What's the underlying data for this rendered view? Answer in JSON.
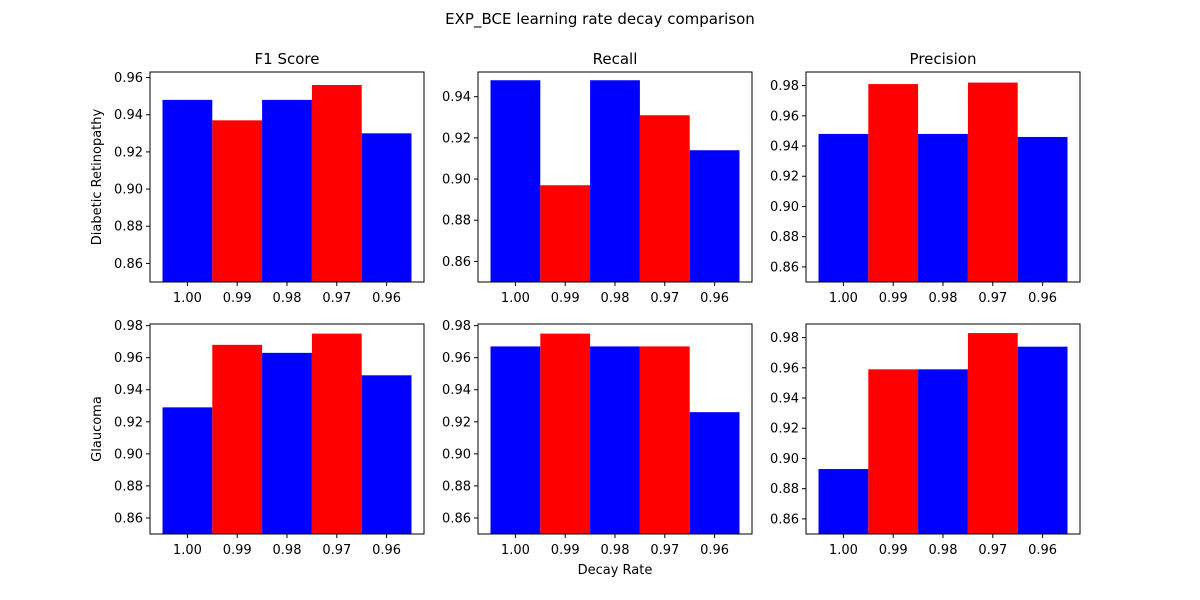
{
  "figure": {
    "title": "EXP_BCE learning rate decay comparison",
    "xlabel": "Decay Rate"
  },
  "columns": [
    "F1 Score",
    "Recall",
    "Precision"
  ],
  "rows": [
    "Diabetic Retinopathy",
    "Glaucoma"
  ],
  "colors": {
    "blue": "#0000ff",
    "red": "#ff0000",
    "axis": "#000000"
  },
  "chart_data": [
    {
      "type": "bar",
      "row": "Diabetic Retinopathy",
      "title": "F1 Score",
      "ylabel": "Diabetic Retinopathy",
      "categories": [
        "1.00",
        "0.99",
        "0.98",
        "0.97",
        "0.96"
      ],
      "values": [
        0.948,
        0.937,
        0.948,
        0.956,
        0.93
      ],
      "bar_colors": [
        "blue",
        "red",
        "blue",
        "red",
        "blue"
      ],
      "ylim": [
        0.85,
        0.963
      ],
      "yticks": [
        "0.86",
        "0.88",
        "0.90",
        "0.92",
        "0.94",
        "0.96"
      ]
    },
    {
      "type": "bar",
      "row": "Diabetic Retinopathy",
      "title": "Recall",
      "categories": [
        "1.00",
        "0.99",
        "0.98",
        "0.97",
        "0.96"
      ],
      "values": [
        0.948,
        0.897,
        0.948,
        0.931,
        0.914
      ],
      "bar_colors": [
        "blue",
        "red",
        "blue",
        "red",
        "blue"
      ],
      "ylim": [
        0.85,
        0.952
      ],
      "yticks": [
        "0.86",
        "0.88",
        "0.90",
        "0.92",
        "0.94"
      ]
    },
    {
      "type": "bar",
      "row": "Diabetic Retinopathy",
      "title": "Precision",
      "categories": [
        "1.00",
        "0.99",
        "0.98",
        "0.97",
        "0.96"
      ],
      "values": [
        0.948,
        0.981,
        0.948,
        0.982,
        0.946
      ],
      "bar_colors": [
        "blue",
        "red",
        "blue",
        "red",
        "blue"
      ],
      "ylim": [
        0.85,
        0.989
      ],
      "yticks": [
        "0.86",
        "0.88",
        "0.90",
        "0.92",
        "0.94",
        "0.96",
        "0.98"
      ]
    },
    {
      "type": "bar",
      "row": "Glaucoma",
      "title": "",
      "ylabel": "Glaucoma",
      "categories": [
        "1.00",
        "0.99",
        "0.98",
        "0.97",
        "0.96"
      ],
      "values": [
        0.929,
        0.968,
        0.963,
        0.975,
        0.949
      ],
      "bar_colors": [
        "blue",
        "red",
        "blue",
        "red",
        "blue"
      ],
      "ylim": [
        0.85,
        0.981
      ],
      "yticks": [
        "0.86",
        "0.88",
        "0.90",
        "0.92",
        "0.94",
        "0.96",
        "0.98"
      ]
    },
    {
      "type": "bar",
      "row": "Glaucoma",
      "title": "",
      "xlabel": "Decay Rate",
      "categories": [
        "1.00",
        "0.99",
        "0.98",
        "0.97",
        "0.96"
      ],
      "values": [
        0.967,
        0.975,
        0.967,
        0.967,
        0.926
      ],
      "bar_colors": [
        "blue",
        "red",
        "blue",
        "red",
        "blue"
      ],
      "ylim": [
        0.85,
        0.981
      ],
      "yticks": [
        "0.86",
        "0.88",
        "0.90",
        "0.92",
        "0.94",
        "0.96",
        "0.98"
      ]
    },
    {
      "type": "bar",
      "row": "Glaucoma",
      "title": "",
      "categories": [
        "1.00",
        "0.99",
        "0.98",
        "0.97",
        "0.96"
      ],
      "values": [
        0.893,
        0.959,
        0.959,
        0.983,
        0.974
      ],
      "bar_colors": [
        "blue",
        "red",
        "blue",
        "red",
        "blue"
      ],
      "ylim": [
        0.85,
        0.989
      ],
      "yticks": [
        "0.86",
        "0.88",
        "0.90",
        "0.92",
        "0.94",
        "0.96",
        "0.98"
      ]
    }
  ]
}
